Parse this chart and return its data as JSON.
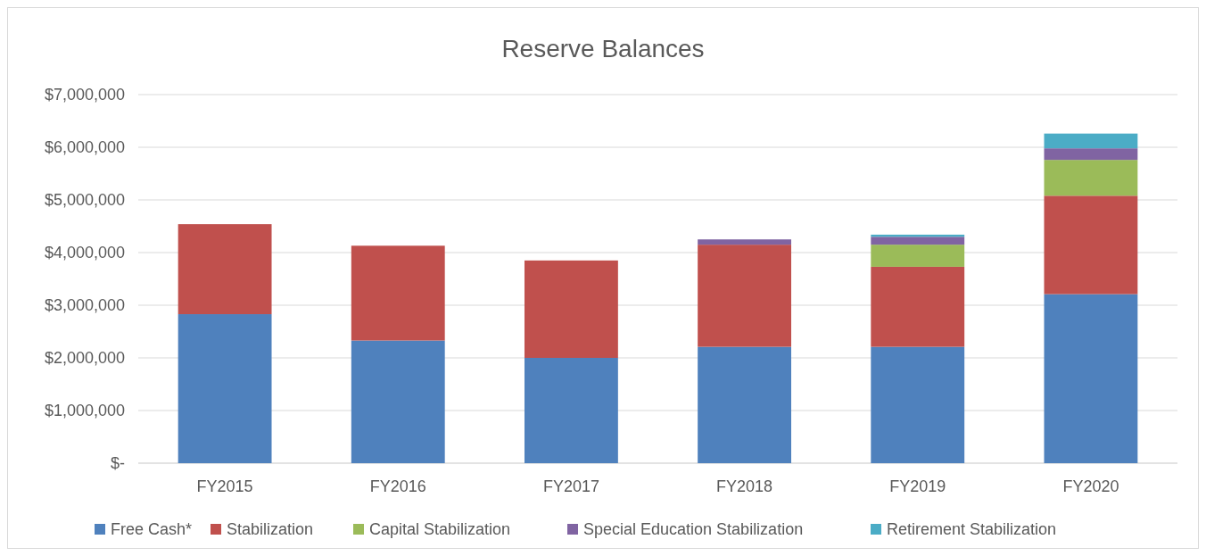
{
  "chart_data": {
    "type": "bar",
    "title": "Reserve Balances",
    "stacked": true,
    "grid": "y",
    "legend": "bottom",
    "categories": [
      "FY2015",
      "FY2016",
      "FY2017",
      "FY2018",
      "FY2019",
      "FY2020"
    ],
    "series": [
      {
        "name": "Free Cash*",
        "color": "#4f81bd",
        "values": [
          2830000,
          2330000,
          2000000,
          2210000,
          2210000,
          3210000
        ]
      },
      {
        "name": "Stabilization",
        "color": "#c0504d",
        "values": [
          1710000,
          1800000,
          1850000,
          1940000,
          1520000,
          1870000
        ]
      },
      {
        "name": "Capital Stabilization",
        "color": "#9bbb59",
        "values": [
          0,
          0,
          0,
          0,
          420000,
          680000
        ]
      },
      {
        "name": "Special Education Stabilization",
        "color": "#8064a2",
        "values": [
          0,
          0,
          0,
          100000,
          150000,
          220000
        ]
      },
      {
        "name": "Retirement Stabilization",
        "color": "#4bacc6",
        "values": [
          0,
          0,
          0,
          0,
          40000,
          280000
        ]
      }
    ],
    "ylim": [
      0,
      7000000
    ],
    "yticks": [
      {
        "value": 0,
        "label": "$-"
      },
      {
        "value": 1000000,
        "label": "$1,000,000"
      },
      {
        "value": 2000000,
        "label": "$2,000,000"
      },
      {
        "value": 3000000,
        "label": "$3,000,000"
      },
      {
        "value": 4000000,
        "label": "$4,000,000"
      },
      {
        "value": 5000000,
        "label": "$5,000,000"
      },
      {
        "value": 6000000,
        "label": "$6,000,000"
      },
      {
        "value": 7000000,
        "label": "$7,000,000"
      }
    ]
  }
}
